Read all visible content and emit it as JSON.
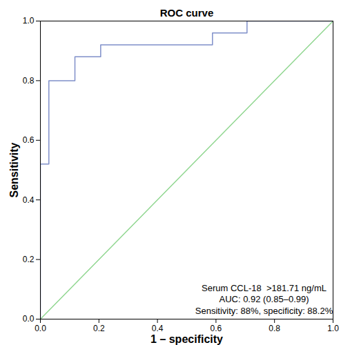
{
  "chart_data": {
    "type": "line",
    "title": "ROC curve",
    "x_label": "1 – specificity",
    "y_label": "Sensitivity",
    "xlim": [
      0,
      1
    ],
    "ylim": [
      0,
      1
    ],
    "xticks": [
      {
        "value": 0,
        "label": "0.0"
      },
      {
        "value": 0.2,
        "label": "0.2"
      },
      {
        "value": 0.4,
        "label": "0.4"
      },
      {
        "value": 0.6,
        "label": "0.6"
      },
      {
        "value": 0.8,
        "label": "0.8"
      },
      {
        "value": 1,
        "label": "1.0"
      }
    ],
    "yticks": [
      {
        "value": 0,
        "label": "0.0"
      },
      {
        "value": 0.2,
        "label": "0.2"
      },
      {
        "value": 0.4,
        "label": "0.4"
      },
      {
        "value": 0.6,
        "label": "0.6"
      },
      {
        "value": 0.8,
        "label": "0.8"
      },
      {
        "value": 1,
        "label": "1.0"
      }
    ],
    "grid": false,
    "series": [
      {
        "color": "#7f8fc9",
        "line_style": "solid",
        "x": [
          0,
          0,
          0.029,
          0.029,
          0.118,
          0.118,
          0.206,
          0.206,
          0.588,
          0.588,
          0.706,
          0.706,
          1
        ],
        "values": [
          0,
          0.52,
          0.52,
          0.8,
          0.8,
          0.88,
          0.88,
          0.92,
          0.92,
          0.96,
          0.96,
          1,
          1
        ]
      },
      {
        "color": "#8fd68f",
        "line_style": "solid",
        "x": [
          0,
          1
        ],
        "values": [
          0,
          1
        ]
      }
    ],
    "annotations": [
      "Serum CCL-18  >181.71 ng/mL",
      "AUC: 0.92 (0.85–0.99)",
      "Sensitivity: 88%, specificity: 88.2%"
    ]
  }
}
